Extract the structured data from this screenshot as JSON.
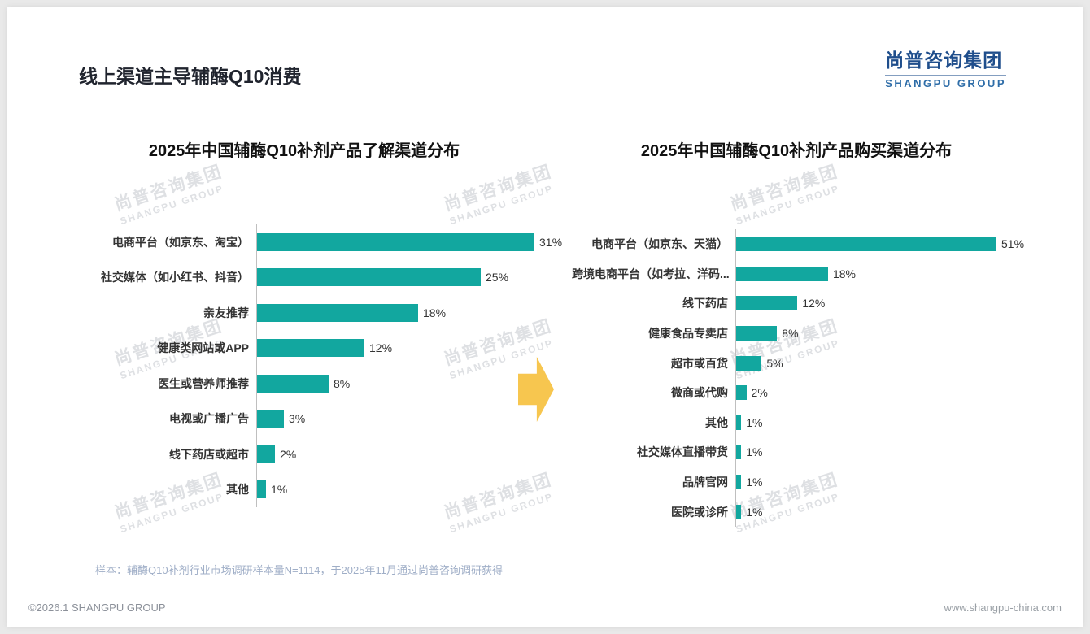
{
  "page": {
    "title": "线上渠道主导辅酶Q10消费",
    "logo": {
      "cn": "尚普咨询集团",
      "en": "SHANGPU GROUP"
    },
    "watermark_cn": "尚普咨询集团",
    "watermark_en": "SHANGPU GROUP",
    "footnote": "样本：辅酶Q10补剂行业市场调研样本量N=1114，于2025年11月通过尚普咨询调研获得",
    "footer_left": "©2026.1 SHANGPU GROUP",
    "footer_right": "www.shangpu-china.com"
  },
  "colors": {
    "bar": "#12A79F",
    "arrow": "#F7C64F",
    "logo_blue": "#1F4E8C",
    "logo_en_blue": "#2E6DA8",
    "footnote": "#9FAEC7"
  },
  "chart_data": [
    {
      "type": "bar",
      "orientation": "horizontal",
      "title": "2025年中国辅酶Q10补剂产品了解渠道分布",
      "categories": [
        "电商平台（如京东、淘宝）",
        "社交媒体（如小红书、抖音）",
        "亲友推荐",
        "健康类网站或APP",
        "医生或营养师推荐",
        "电视或广播广告",
        "线下药店或超市",
        "其他"
      ],
      "values": [
        31,
        25,
        18,
        12,
        8,
        3,
        2,
        1
      ],
      "unit": "%",
      "xlim": [
        0,
        31
      ],
      "grid": false,
      "legend": false,
      "bar_color": "#12A79F"
    },
    {
      "type": "bar",
      "orientation": "horizontal",
      "title": "2025年中国辅酶Q10补剂产品购买渠道分布",
      "categories": [
        "电商平台（如京东、天猫）",
        "跨境电商平台（如考拉、洋码...",
        "线下药店",
        "健康食品专卖店",
        "超市或百货",
        "微商或代购",
        "其他",
        "社交媒体直播带货",
        "品牌官网",
        "医院或诊所"
      ],
      "values": [
        51,
        18,
        12,
        8,
        5,
        2,
        1,
        1,
        1,
        1
      ],
      "unit": "%",
      "xlim": [
        0,
        51
      ],
      "grid": false,
      "legend": false,
      "bar_color": "#12A79F"
    }
  ]
}
